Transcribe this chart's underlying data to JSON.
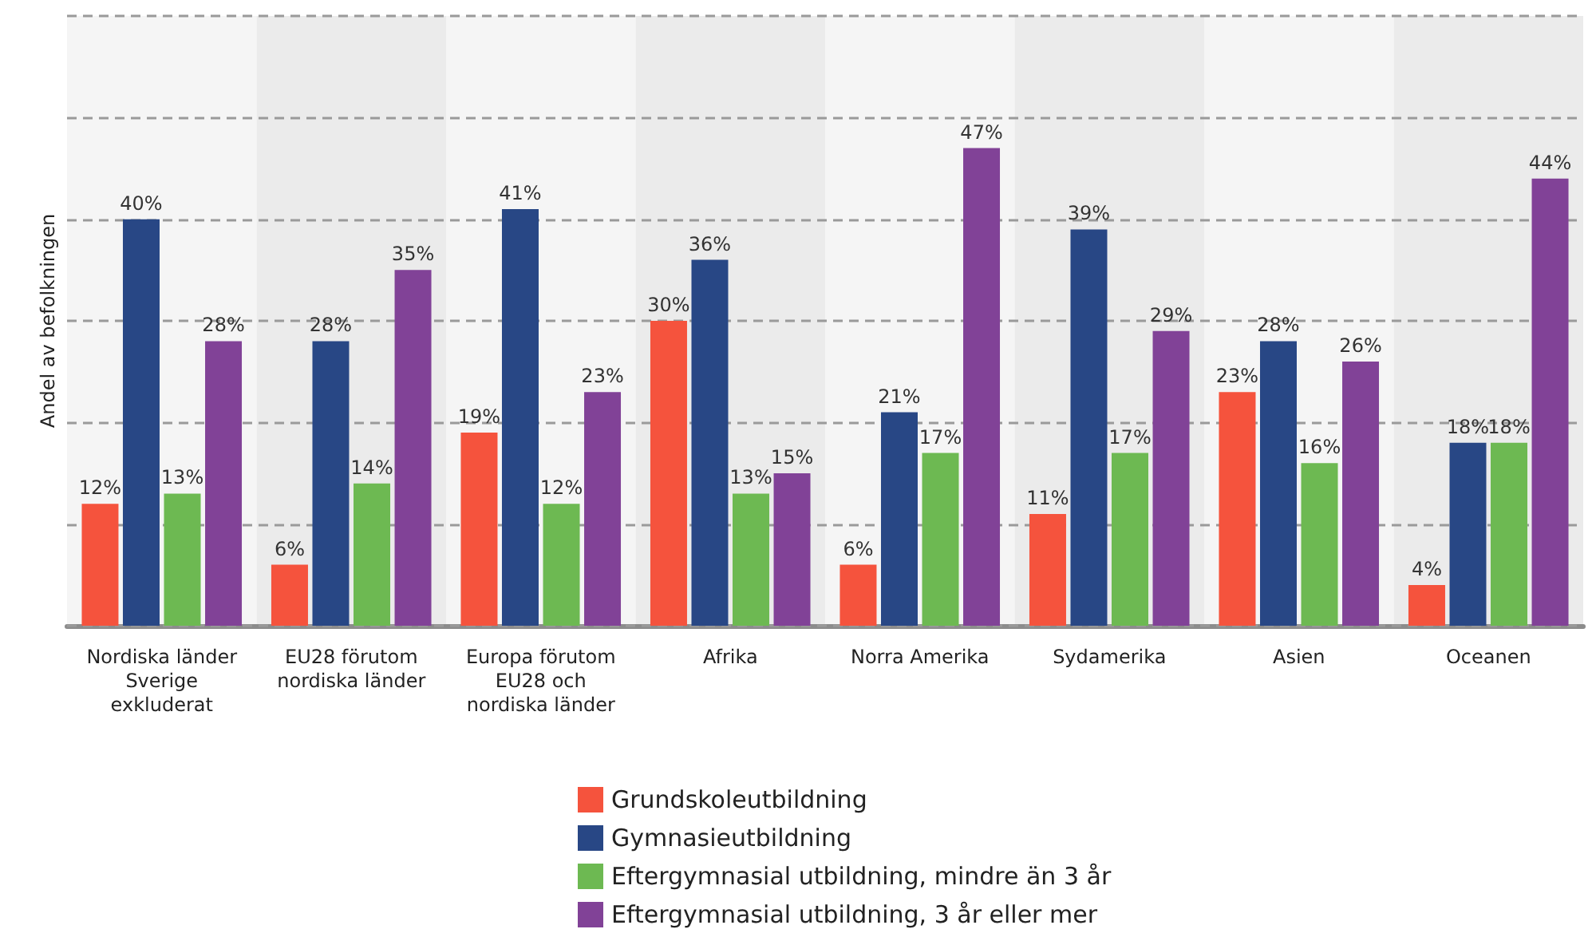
{
  "chart_data": {
    "type": "bar",
    "ylabel": "Andel av befolkningen",
    "categories": [
      "Nordiska länder\nSverige\nexkluderat",
      "EU28 förutom\nnordiska länder",
      "Europa förutom\nEU28 och\nnordiska länder",
      "Afrika",
      "Norra Amerika",
      "Sydamerika",
      "Asien",
      "Oceanen"
    ],
    "series": [
      {
        "name": "Grundskoleutbildning",
        "color": "#f5533d",
        "values": [
          12,
          6,
          19,
          30,
          6,
          11,
          23,
          4
        ],
        "value_labels": [
          "12%",
          "6%",
          "19%",
          "30%",
          "6%",
          "11%",
          "23%",
          "4%"
        ]
      },
      {
        "name": "Gymnasieutbildning",
        "color": "#284785",
        "values": [
          40,
          28,
          41,
          36,
          21,
          39,
          28,
          18
        ],
        "value_labels": [
          "40%",
          "28%",
          "41%",
          "36%",
          "21%",
          "39%",
          "28%",
          "18%"
        ]
      },
      {
        "name": "Eftergymnasial utbildning, mindre än 3 år",
        "color": "#6db952",
        "values": [
          13,
          14,
          12,
          13,
          17,
          17,
          16,
          18
        ],
        "value_labels": [
          "13%",
          "14%",
          "12%",
          "13%",
          "17%",
          "17%",
          "16%",
          "18%"
        ]
      },
      {
        "name": "Eftergymnasial utbildning, 3 år eller mer",
        "color": "#814297",
        "values": [
          28,
          35,
          23,
          15,
          47,
          29,
          26,
          44
        ],
        "value_labels": [
          "28%",
          "35%",
          "23%",
          "15%",
          "47%",
          "29%",
          "26%",
          "44%"
        ]
      }
    ],
    "ylim": [
      0,
      60
    ],
    "yticks": [
      0,
      10,
      20,
      30,
      40,
      50,
      60
    ],
    "grid": "y",
    "legend": "bottom",
    "tick_labels": "x"
  }
}
